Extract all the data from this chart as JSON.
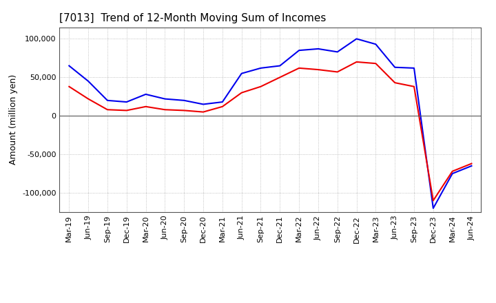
{
  "title": "[7013]  Trend of 12-Month Moving Sum of Incomes",
  "ylabel": "Amount (million yen)",
  "background_color": "#ffffff",
  "grid_color": "#b0b0b0",
  "ylim": [
    -125000,
    115000
  ],
  "yticks": [
    -100000,
    -50000,
    0,
    50000,
    100000
  ],
  "x_labels": [
    "Mar-19",
    "Jun-19",
    "Sep-19",
    "Dec-19",
    "Mar-20",
    "Jun-20",
    "Sep-20",
    "Dec-20",
    "Mar-21",
    "Jun-21",
    "Sep-21",
    "Dec-21",
    "Mar-22",
    "Jun-22",
    "Sep-22",
    "Dec-22",
    "Mar-23",
    "Jun-23",
    "Sep-23",
    "Dec-23",
    "Mar-24",
    "Jun-24"
  ],
  "ordinary_income": [
    65000,
    45000,
    20000,
    18000,
    28000,
    22000,
    20000,
    15000,
    18000,
    55000,
    62000,
    65000,
    85000,
    87000,
    83000,
    100000,
    93000,
    63000,
    62000,
    -120000,
    -75000,
    -65000
  ],
  "net_income": [
    38000,
    22000,
    8000,
    7000,
    12000,
    8000,
    7000,
    5000,
    12000,
    30000,
    38000,
    50000,
    62000,
    60000,
    57000,
    70000,
    68000,
    43000,
    38000,
    -110000,
    -72000,
    -62000
  ],
  "ordinary_income_color": "#0000ee",
  "net_income_color": "#ee0000",
  "line_width": 1.5,
  "title_fontsize": 11,
  "legend_fontsize": 9,
  "tick_fontsize": 8,
  "ylabel_fontsize": 9
}
